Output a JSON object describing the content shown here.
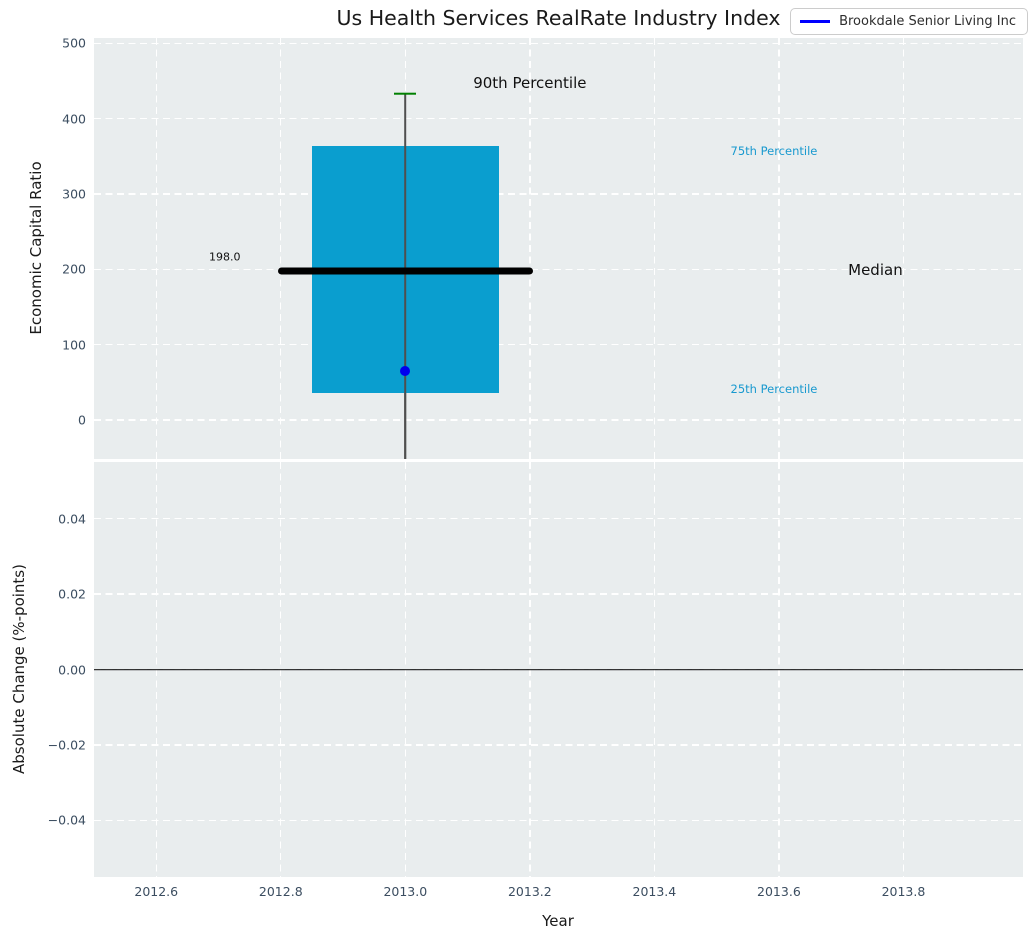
{
  "title": "Us Health Services RealRate Industry Index",
  "legend": {
    "label": "Brookdale Senior Living Inc",
    "line_color": "#0000ff"
  },
  "colors": {
    "axes_background": "#e9edee",
    "grid": "#ffffff",
    "box_fill": "#0a9ecf",
    "percentile_text": "#1899cf",
    "p90_cap": "#008000",
    "company_point": "#0000ee",
    "median_line": "#000000",
    "whisker": "#4f4f4f",
    "tick_text": "#3b4d60"
  },
  "chart_data": [
    {
      "type": "box",
      "title": "Us Health Services RealRate Industry Index",
      "ylabel": "Economic Capital Ratio",
      "ylim": [
        -52,
        507
      ],
      "xlim": [
        2012.5,
        2013.992
      ],
      "yticks": [
        0,
        100,
        200,
        300,
        400,
        500
      ],
      "ytick_labels": [
        "0",
        "100",
        "200",
        "300",
        "400",
        "500"
      ],
      "xticks": [
        2012.6,
        2012.8,
        2013.0,
        2013.2,
        2013.4,
        2013.6,
        2013.8
      ],
      "grid": true,
      "legend_position": "upper right",
      "box": {
        "x": 2013.0,
        "x_left": 2012.85,
        "x_right": 2013.15,
        "q1_25th_percentile": 35,
        "q3_75th_percentile": 363,
        "median": 198.0,
        "median_span_left": 2012.795,
        "median_span_right": 2013.205,
        "p90_90th_percentile": 433,
        "whisker_low_clipped_below_axis": true
      },
      "company_point": {
        "name": "Brookdale Senior Living Inc",
        "x": 2013.0,
        "y": 65
      },
      "annotations": [
        {
          "text": "90th Percentile",
          "x": 2013.2,
          "y": 447,
          "style": "big"
        },
        {
          "text": "198.0",
          "x": 2012.71,
          "y": 216,
          "style": "small"
        },
        {
          "text": "Median",
          "x": 2013.755,
          "y": 199,
          "style": "big"
        },
        {
          "text": "75th Percentile",
          "x": 2013.592,
          "y": 357,
          "style": "cyan"
        },
        {
          "text": "25th Percentile",
          "x": 2013.592,
          "y": 41,
          "style": "cyan"
        }
      ]
    },
    {
      "type": "line",
      "ylabel": "Absolute Change (%-points)",
      "xlabel": "Year",
      "ylim": [
        -0.055,
        0.055
      ],
      "xlim": [
        2012.5,
        2013.992
      ],
      "yticks": [
        0.04,
        0.02,
        0.0,
        -0.02,
        -0.04
      ],
      "ytick_labels": [
        "0.04",
        "0.02",
        "0.00",
        "−0.02",
        "−0.04"
      ],
      "xticks": [
        2012.6,
        2012.8,
        2013.0,
        2013.2,
        2013.4,
        2013.6,
        2013.8
      ],
      "xtick_labels": [
        "2012.6",
        "2012.8",
        "2013.0",
        "2013.2",
        "2013.4",
        "2013.6",
        "2013.8"
      ],
      "grid": true,
      "zero_line": 0.0
    }
  ]
}
